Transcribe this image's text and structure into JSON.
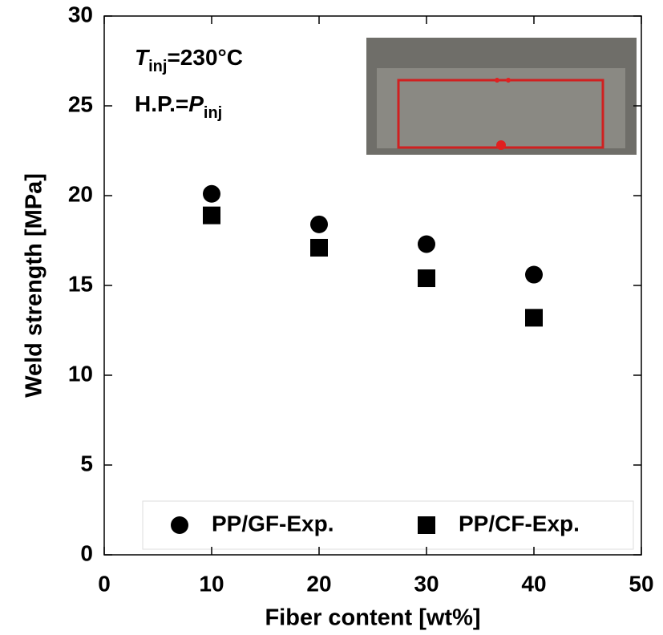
{
  "chart_data": {
    "type": "scatter",
    "xlabel": "Fiber content [wt%]",
    "ylabel": "Weld strength [MPa]",
    "annotations": [
      [
        "T",
        "inj",
        "=230°C"
      ],
      [
        "H.P.=",
        "P",
        "inj"
      ]
    ],
    "xlim": [
      0,
      50
    ],
    "xticks": [
      0,
      10,
      20,
      30,
      40,
      50
    ],
    "ylim": [
      0,
      30
    ],
    "yticks": [
      0,
      5,
      10,
      15,
      20,
      25,
      30
    ],
    "series": [
      {
        "name": "PP/GF-Exp.",
        "marker": "circle",
        "color": "#000000",
        "x": [
          10,
          20,
          30,
          40
        ],
        "values": [
          20.1,
          18.4,
          17.3,
          15.6
        ]
      },
      {
        "name": "PP/CF-Exp.",
        "marker": "square",
        "color": "#000000",
        "x": [
          10,
          20,
          30,
          40
        ],
        "values": [
          18.9,
          17.1,
          15.4,
          13.2
        ]
      }
    ]
  }
}
